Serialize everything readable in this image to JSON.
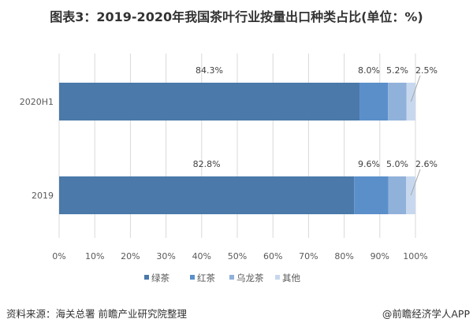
{
  "title": "图表3：2019-2020年我国茶叶行业按量出口种类占比(单位：%)",
  "source": "资料来源：海关总署 前瞻产业研究院整理",
  "brand": "@前瞻经济学人APP",
  "chart_data": {
    "type": "bar",
    "orientation": "horizontal",
    "stacked": true,
    "categories": [
      "2020H1",
      "2019"
    ],
    "series": [
      {
        "name": "绿茶",
        "values": [
          84.3,
          82.8
        ],
        "labels": [
          "84.3%",
          "82.8%"
        ],
        "color": "#4a79aa"
      },
      {
        "name": "红茶",
        "values": [
          8.0,
          9.6
        ],
        "labels": [
          "8.0%",
          "9.6%"
        ],
        "color": "#5a8fca"
      },
      {
        "name": "乌龙茶",
        "values": [
          5.2,
          5.0
        ],
        "labels": [
          "5.2%",
          "5.0%"
        ],
        "color": "#90b1da"
      },
      {
        "name": "其他",
        "values": [
          2.5,
          2.6
        ],
        "labels": [
          "2.5%",
          "2.6%"
        ],
        "color": "#c7d8ee"
      }
    ],
    "xlim": [
      0,
      100
    ],
    "xticks": [
      "0%",
      "10%",
      "20%",
      "30%",
      "40%",
      "50%",
      "60%",
      "70%",
      "80%",
      "90%",
      "100%"
    ],
    "grid": true,
    "legend": "bottom"
  }
}
